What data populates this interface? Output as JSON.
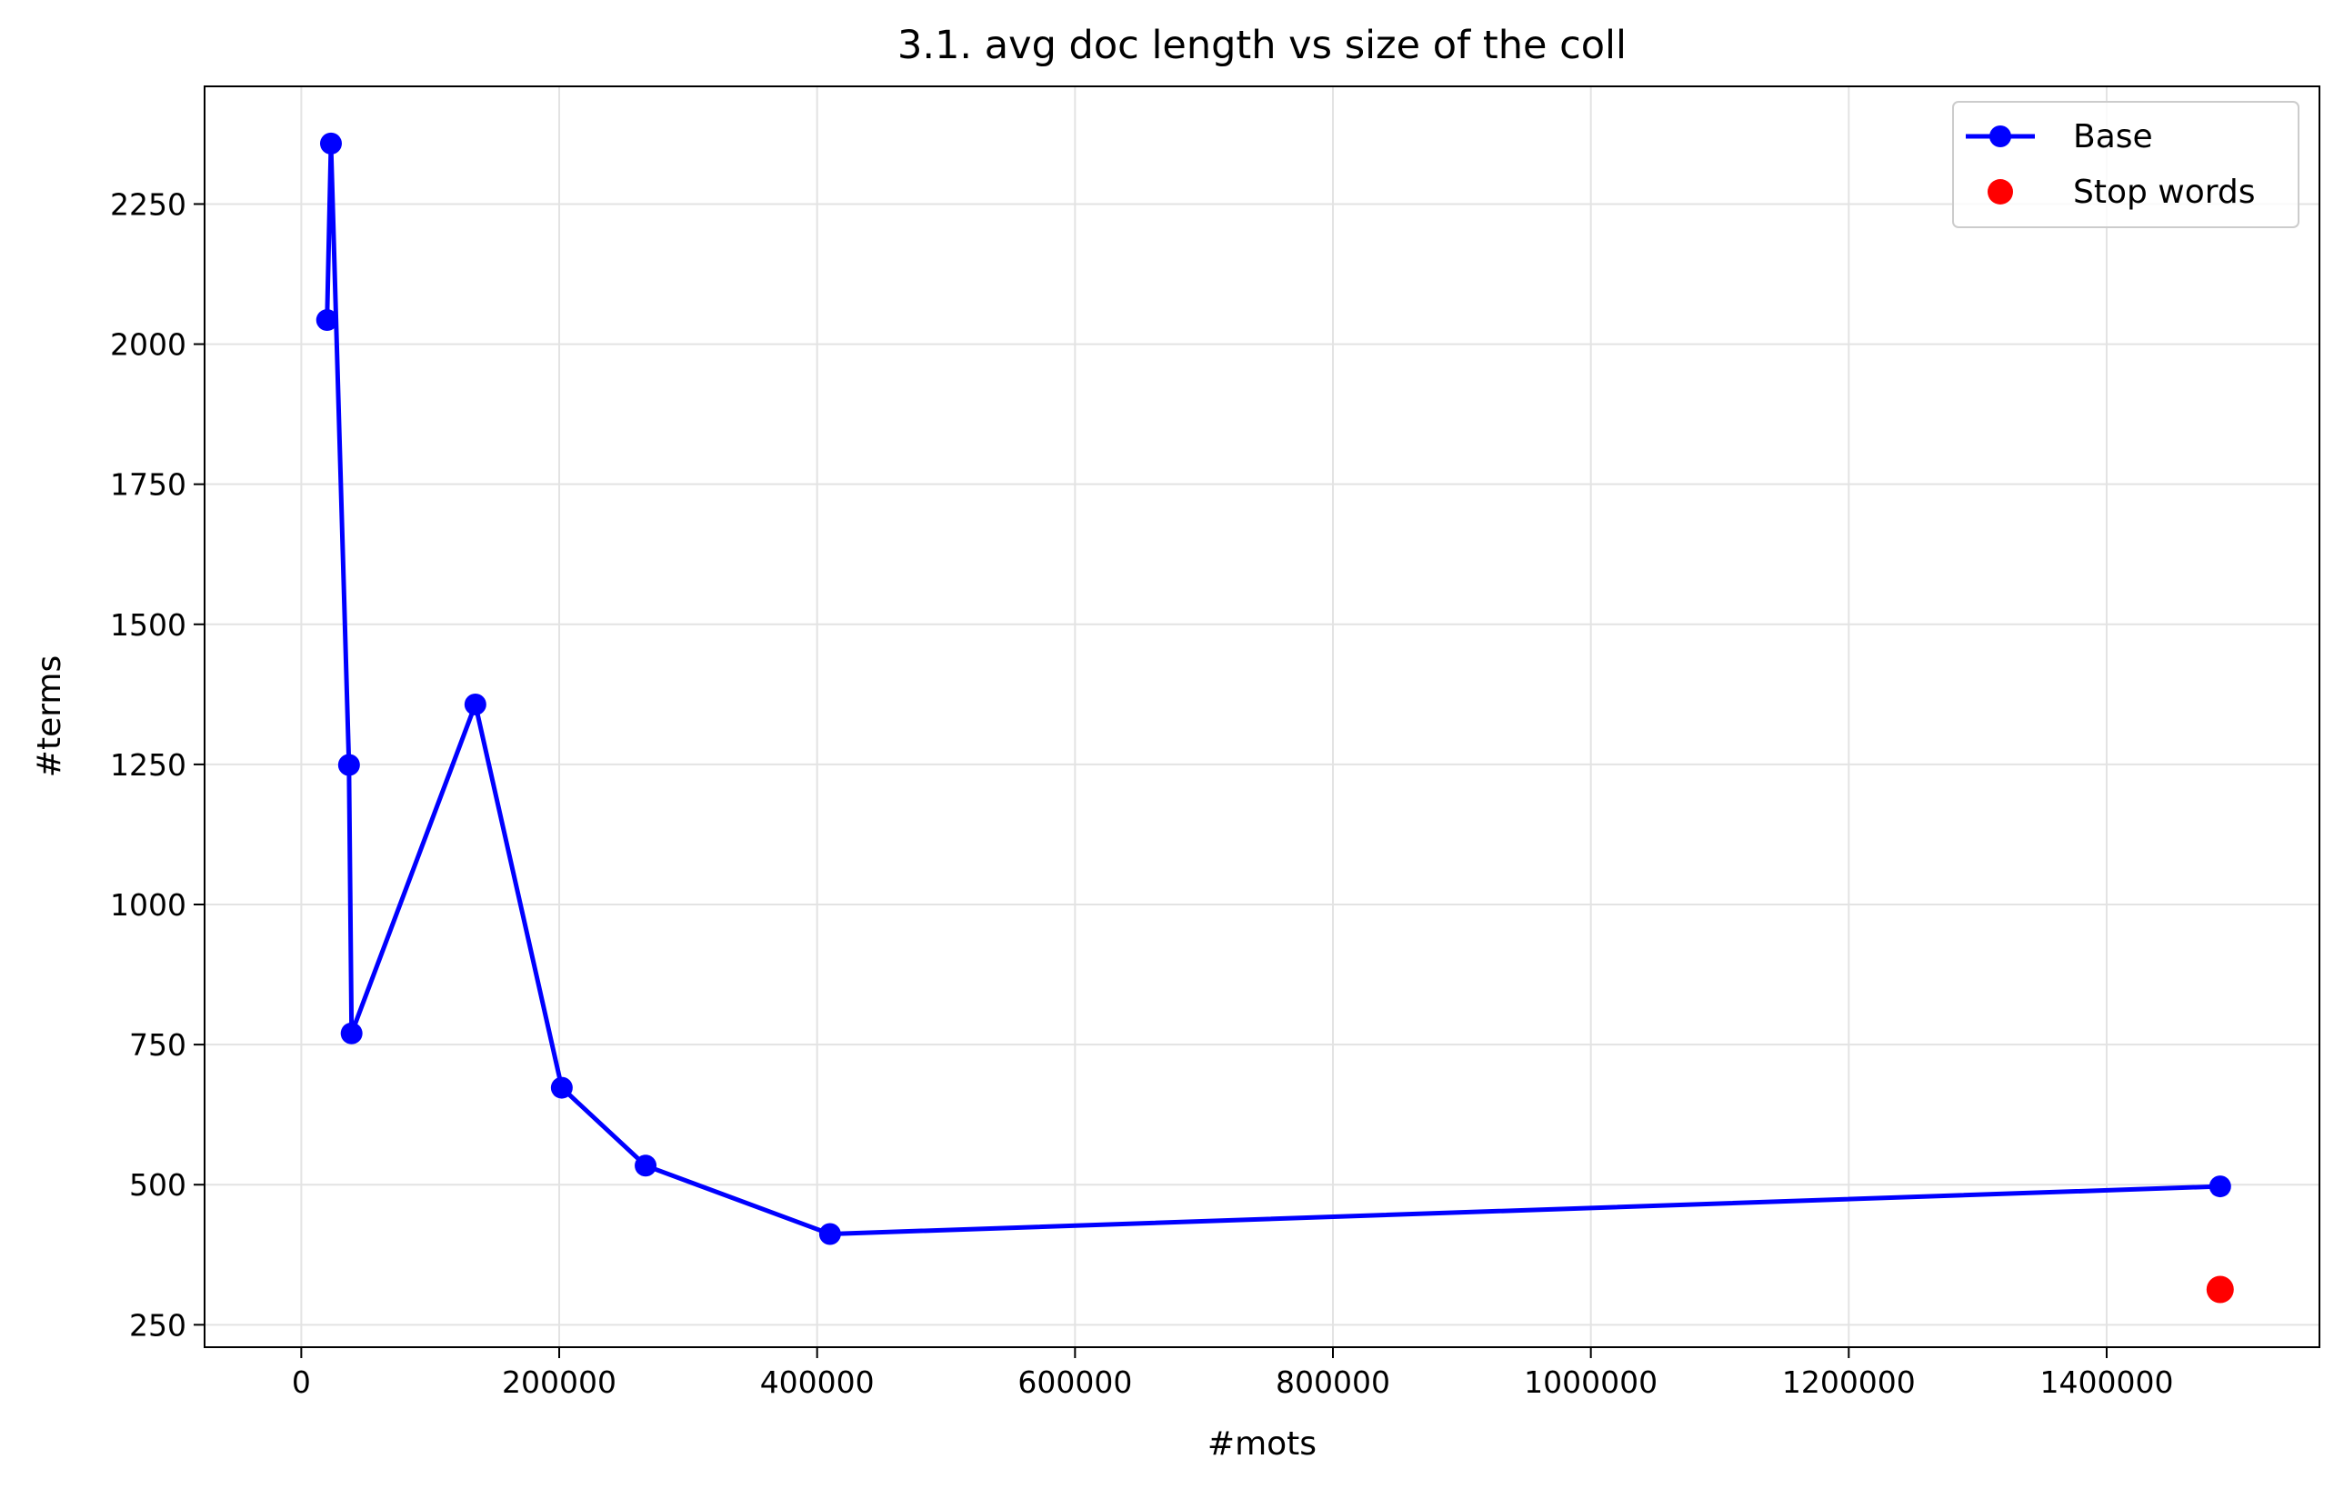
{
  "chart_data": {
    "type": "line",
    "title": "3.1. avg doc length vs size of the coll",
    "xlabel": "#mots",
    "ylabel": "#terms",
    "xlim": [
      -75000,
      1565000
    ],
    "ylim": [
      210,
      2460
    ],
    "xticks": [
      0,
      200000,
      400000,
      600000,
      800000,
      1000000,
      1200000,
      1400000
    ],
    "xtick_labels": [
      "0",
      "200000",
      "400000",
      "600000",
      "800000",
      "1000000",
      "1200000",
      "1400000"
    ],
    "yticks": [
      250,
      500,
      750,
      1000,
      1250,
      1500,
      1750,
      2000,
      2250
    ],
    "ytick_labels": [
      "250",
      "500",
      "750",
      "1000",
      "1250",
      "1500",
      "1750",
      "2000",
      "2250"
    ],
    "grid": true,
    "legend_position": "top-right",
    "series": [
      {
        "name": "Base",
        "color": "#0000ff",
        "style": "line-marker",
        "x": [
          20000,
          23000,
          37000,
          39000,
          135000,
          202000,
          267000,
          410000,
          1488000
        ],
        "y": [
          2043,
          2358,
          1249,
          770,
          1357,
          673,
          534,
          412,
          497
        ]
      },
      {
        "name": "Stop words",
        "color": "#ff0000",
        "style": "marker",
        "x": [
          1488000
        ],
        "y": [
          313
        ]
      }
    ]
  }
}
